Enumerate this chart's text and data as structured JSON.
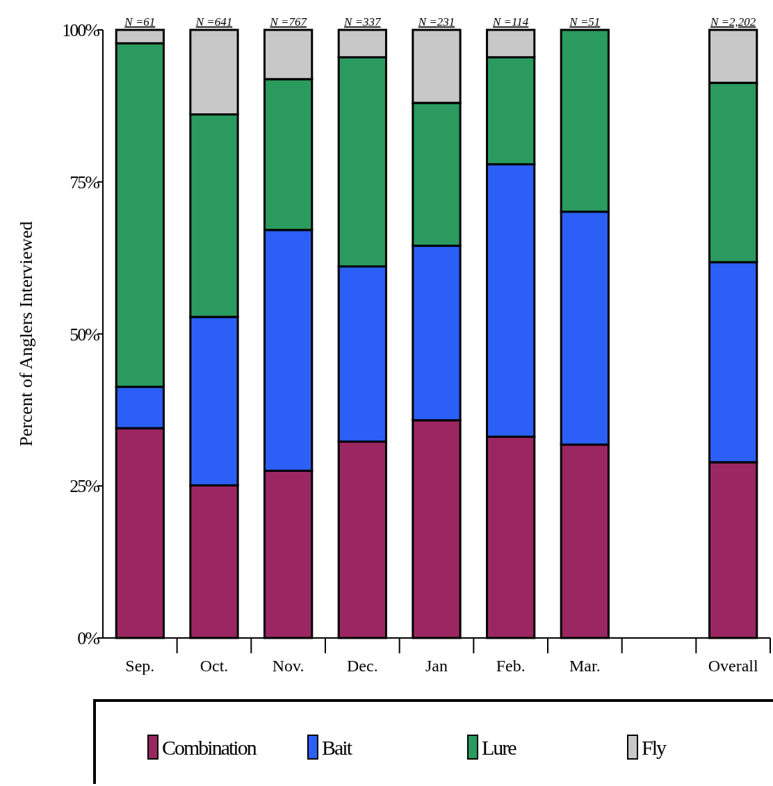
{
  "chart_data": {
    "type": "bar",
    "stacked": true,
    "ylabel": "Percent of Anglers Interviewed",
    "categories": [
      "Sep.",
      "Oct.",
      "Nov.",
      "Dec.",
      "Jan",
      "Feb.",
      "Mar.",
      null,
      "Overall"
    ],
    "series": [
      {
        "name": "Combination",
        "color": "#9b2762",
        "values": [
          34.5,
          25.1,
          27.5,
          32.3,
          35.8,
          33.1,
          31.8,
          null,
          28.9
        ]
      },
      {
        "name": "Bait",
        "color": "#2b5ff5",
        "values": [
          6.8,
          27.7,
          39.6,
          28.8,
          28.7,
          44.8,
          38.3,
          null,
          32.9
        ]
      },
      {
        "name": "Lure",
        "color": "#2a9a5f",
        "values": [
          56.5,
          33.3,
          24.8,
          34.4,
          23.5,
          17.6,
          29.9,
          null,
          29.5
        ]
      },
      {
        "name": "Fly",
        "color": "#c8c8c8",
        "values": [
          2.2,
          13.9,
          8.1,
          4.5,
          12.0,
          4.5,
          0,
          null,
          8.7
        ]
      }
    ],
    "ylim": [
      0,
      100
    ],
    "yticks": [
      {
        "value": 0,
        "label": "0%"
      },
      {
        "value": 25,
        "label": "25%"
      },
      {
        "value": 50,
        "label": "50%"
      },
      {
        "value": 75,
        "label": "75%"
      },
      {
        "value": 100,
        "label": "100%"
      }
    ],
    "annotations": [
      {
        "text": "N =61",
        "x": "Sep.",
        "y": 100
      },
      {
        "text": "N =641",
        "x": "Oct.",
        "y": 100
      },
      {
        "text": "N =767",
        "x": "Nov.",
        "y": 100
      },
      {
        "text": "N =337",
        "x": "Dec.",
        "y": 100
      },
      {
        "text": "N =231",
        "x": "Jan",
        "y": 100
      },
      {
        "text": "N =114",
        "x": "Feb.",
        "y": 100
      },
      {
        "text": "N =51",
        "x": "Mar.",
        "y": 100
      },
      {
        "text": "N =2,202",
        "x": "Overall",
        "y": 100
      }
    ],
    "legend": "bottom",
    "grid": false
  }
}
